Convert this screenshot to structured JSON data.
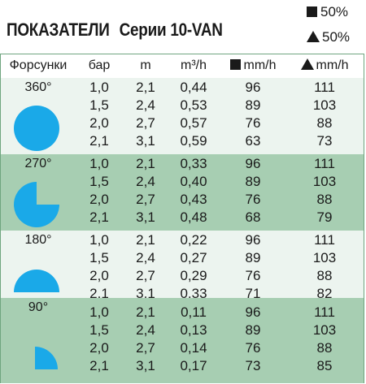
{
  "title": "ПОКАЗАТЕЛИ",
  "subtitle": "Серии 10-VAN",
  "legend": [
    {
      "icon": "square",
      "label": "50%"
    },
    {
      "icon": "triangle",
      "label": "50%"
    }
  ],
  "columns": {
    "nozzles": "Форсунки",
    "bar": "бар",
    "m": "m",
    "flow": "m³/h",
    "precip_square": "mm/h",
    "precip_triangle": "mm/h"
  },
  "colors": {
    "shape": "#1aa9e8",
    "light_band": "#ecf4ef",
    "dark_band": "#a7ceb2"
  },
  "groups": [
    {
      "angle": "360°",
      "shape": "full-circle",
      "band": "light",
      "rows": [
        [
          "1,0",
          "2,1",
          "0,44",
          "96",
          "111"
        ],
        [
          "1,5",
          "2,4",
          "0,53",
          "89",
          "103"
        ],
        [
          "2,0",
          "2,7",
          "0,57",
          "76",
          "88"
        ],
        [
          "2,1",
          "3,1",
          "0,59",
          "63",
          "73"
        ]
      ]
    },
    {
      "angle": "270°",
      "shape": "three-quarter-circle",
      "band": "dark",
      "rows": [
        [
          "1,0",
          "2,1",
          "0,33",
          "96",
          "111"
        ],
        [
          "1,5",
          "2,4",
          "0,40",
          "89",
          "103"
        ],
        [
          "2,0",
          "2,7",
          "0,43",
          "76",
          "88"
        ],
        [
          "2,1",
          "3,1",
          "0,48",
          "68",
          "79"
        ]
      ]
    },
    {
      "angle": "180°",
      "shape": "half-circle",
      "band": "light",
      "rows": [
        [
          "1,0",
          "2,1",
          "0,22",
          "96",
          "111"
        ],
        [
          "1,5",
          "2,4",
          "0,27",
          "89",
          "103"
        ],
        [
          "2,0",
          "2,7",
          "0,29",
          "76",
          "88"
        ],
        [
          "2,1",
          "3,1",
          "0,33",
          "71",
          "82"
        ]
      ]
    },
    {
      "angle": "90°",
      "shape": "quarter-circle",
      "band": "dark",
      "rows": [
        [
          "1,0",
          "2,1",
          "0,11",
          "96",
          "111"
        ],
        [
          "1,5",
          "2,4",
          "0,13",
          "89",
          "103"
        ],
        [
          "2,0",
          "2,7",
          "0,14",
          "76",
          "88"
        ],
        [
          "2,1",
          "3,1",
          "0,17",
          "73",
          "85"
        ]
      ]
    }
  ]
}
